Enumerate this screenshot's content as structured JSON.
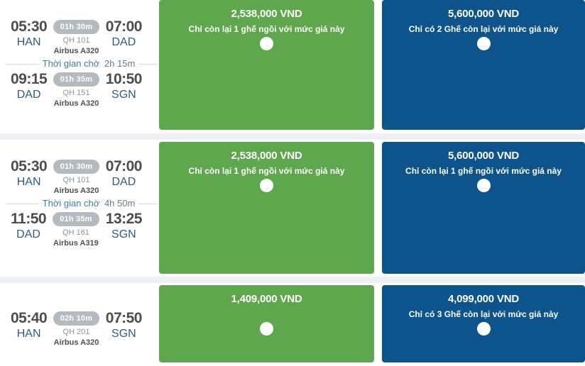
{
  "colors": {
    "economy_green": "#5fa74c",
    "business_blue": "#0d548c",
    "page_background": "#edf1f5",
    "airport_code_blue": "#305c7b",
    "badge_gray": "#b3bac0"
  },
  "rows": [
    {
      "segments": [
        {
          "dep_time": "05:30",
          "dep_code": "HAN",
          "duration": "01h 30m",
          "flight_no": "QH 101",
          "aircraft": "Airbus A320",
          "arr_time": "07:00",
          "arr_code": "DAD"
        },
        {
          "dep_time": "09:15",
          "dep_code": "DAD",
          "duration": "01h 35m",
          "flight_no": "QH 151",
          "aircraft": "Airbus A320",
          "arr_time": "10:50",
          "arr_code": "SGN"
        }
      ],
      "layover": {
        "label": "Thời gian chờ",
        "duration": "2h 15m"
      },
      "fares": [
        {
          "class": "economy",
          "price": "2,538,000 VND",
          "note": "Chỉ còn lại 1 ghế ngồi với mức giá này"
        },
        {
          "class": "business",
          "price": "5,600,000 VND",
          "note": "Chỉ có 2 Ghế còn lại với mức giá này"
        }
      ]
    },
    {
      "segments": [
        {
          "dep_time": "05:30",
          "dep_code": "HAN",
          "duration": "01h 30m",
          "flight_no": "QH 101",
          "aircraft": "Airbus A320",
          "arr_time": "07:00",
          "arr_code": "DAD"
        },
        {
          "dep_time": "11:50",
          "dep_code": "DAD",
          "duration": "01h 35m",
          "flight_no": "QH 161",
          "aircraft": "Airbus A319",
          "arr_time": "13:25",
          "arr_code": "SGN"
        }
      ],
      "layover": {
        "label": "Thời gian chờ",
        "duration": "4h 50m"
      },
      "fares": [
        {
          "class": "economy",
          "price": "2,538,000 VND",
          "note": "Chỉ còn lại 1 ghế ngồi với mức giá này"
        },
        {
          "class": "business",
          "price": "5,600,000 VND",
          "note": "Chỉ còn lại 1 ghế ngồi với mức giá này"
        }
      ]
    },
    {
      "segments": [
        {
          "dep_time": "05:40",
          "dep_code": "HAN",
          "duration": "02h 10m",
          "flight_no": "QH 201",
          "aircraft": "Airbus A320",
          "arr_time": "07:50",
          "arr_code": "SGN"
        }
      ],
      "fares": [
        {
          "class": "economy",
          "price": "1,409,000 VND",
          "note": ""
        },
        {
          "class": "business",
          "price": "4,099,000 VND",
          "note": "Chỉ có 3 Ghế còn lại với mức giá này"
        }
      ]
    }
  ]
}
